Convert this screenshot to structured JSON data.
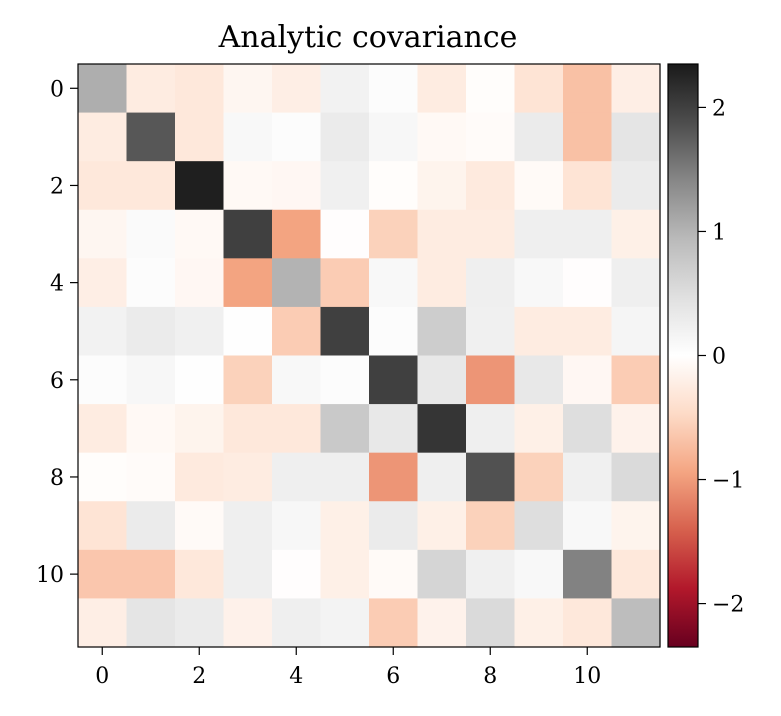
{
  "chart_data": {
    "type": "heatmap",
    "title": "Analytic covariance",
    "xlabel": "",
    "ylabel": "",
    "x_ticks": [
      0,
      2,
      4,
      6,
      8,
      10
    ],
    "y_ticks": [
      0,
      2,
      4,
      6,
      8,
      10
    ],
    "colorbar_ticks": [
      2,
      1,
      0,
      -1,
      -2
    ],
    "colorbar_labels": [
      "2",
      "1",
      "0",
      "−1",
      "−2"
    ],
    "value_range": [
      -2.35,
      2.35
    ],
    "colormap": "RdGy",
    "matrix": [
      [
        1.05,
        -0.25,
        -0.3,
        -0.12,
        -0.22,
        0.2,
        0.05,
        -0.25,
        -0.03,
        -0.35,
        -0.7,
        -0.22
      ],
      [
        -0.25,
        1.8,
        -0.3,
        0.1,
        0.05,
        0.3,
        0.12,
        -0.08,
        -0.05,
        0.3,
        -0.7,
        0.4
      ],
      [
        -0.3,
        -0.3,
        2.3,
        -0.08,
        -0.1,
        0.22,
        -0.03,
        -0.15,
        -0.28,
        -0.07,
        -0.35,
        0.3
      ],
      [
        -0.12,
        0.08,
        -0.08,
        2.0,
        -0.95,
        -0.02,
        -0.55,
        -0.25,
        -0.25,
        0.25,
        0.25,
        -0.2
      ],
      [
        -0.22,
        0.05,
        -0.1,
        -0.95,
        1.0,
        -0.6,
        0.1,
        -0.25,
        0.25,
        0.1,
        -0.02,
        0.25
      ],
      [
        0.2,
        0.3,
        0.22,
        0.02,
        -0.6,
        2.0,
        0.05,
        0.7,
        0.22,
        -0.25,
        -0.25,
        0.15
      ],
      [
        0.05,
        0.12,
        0.02,
        -0.55,
        0.1,
        0.05,
        2.0,
        0.35,
        -1.05,
        0.35,
        -0.1,
        -0.6
      ],
      [
        -0.25,
        -0.08,
        -0.15,
        -0.3,
        -0.3,
        0.75,
        0.35,
        2.1,
        0.25,
        -0.2,
        0.5,
        -0.17
      ],
      [
        -0.03,
        -0.05,
        -0.28,
        -0.25,
        0.25,
        0.25,
        -1.05,
        0.25,
        1.85,
        -0.55,
        0.22,
        0.55
      ],
      [
        -0.35,
        0.3,
        -0.07,
        0.25,
        0.12,
        -0.2,
        0.3,
        -0.2,
        -0.55,
        0.5,
        0.1,
        -0.15
      ],
      [
        -0.65,
        -0.65,
        -0.3,
        0.25,
        -0.02,
        -0.2,
        -0.07,
        0.6,
        0.22,
        0.1,
        1.45,
        -0.3
      ],
      [
        -0.22,
        0.4,
        0.3,
        -0.18,
        0.25,
        0.18,
        -0.6,
        -0.17,
        0.55,
        -0.2,
        -0.3,
        0.9
      ]
    ]
  }
}
